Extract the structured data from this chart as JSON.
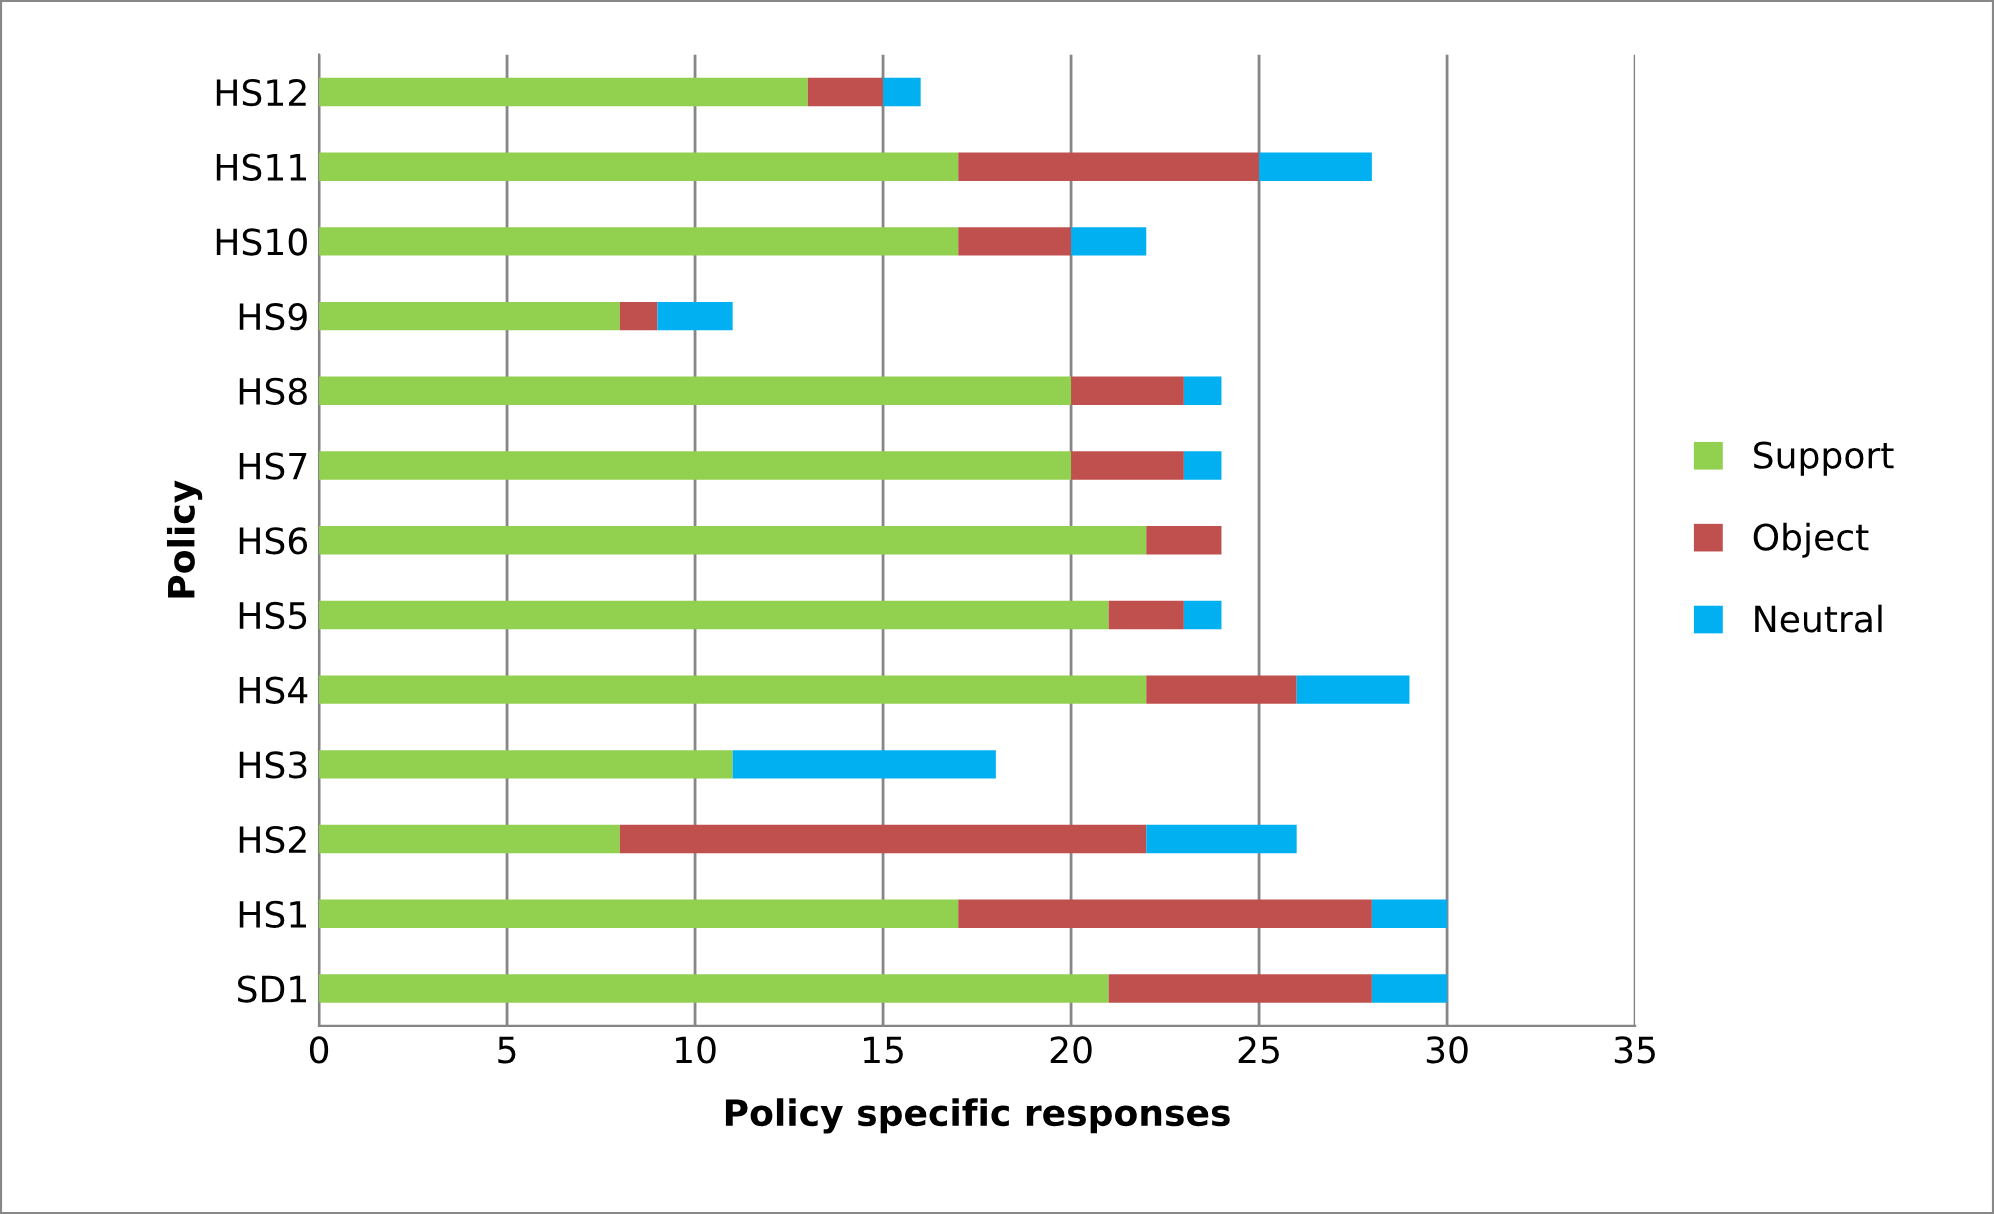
{
  "chart_data": {
    "type": "bar",
    "orientation": "horizontal",
    "stacked": true,
    "xlabel": "Policy specific responses",
    "ylabel": "Policy",
    "categories": [
      "HS12",
      "HS11",
      "HS10",
      "HS9",
      "HS8",
      "HS7",
      "HS6",
      "HS5",
      "HS4",
      "HS3",
      "HS2",
      "HS1",
      "SD1"
    ],
    "series": [
      {
        "name": "Support",
        "color": "#92d050",
        "values": [
          13,
          17,
          17,
          8,
          20,
          20,
          22,
          21,
          22,
          11,
          8,
          17,
          21
        ]
      },
      {
        "name": "Object",
        "color": "#c0504d",
        "values": [
          2,
          8,
          3,
          1,
          3,
          3,
          2,
          2,
          4,
          0,
          14,
          11,
          7
        ]
      },
      {
        "name": "Neutral",
        "color": "#00b0f0",
        "values": [
          1,
          3,
          2,
          2,
          1,
          1,
          0,
          1,
          3,
          7,
          4,
          2,
          2
        ]
      }
    ],
    "xlim": [
      0,
      35
    ],
    "xticks": [
      0,
      5,
      10,
      15,
      20,
      25,
      30,
      35
    ],
    "grid": "x",
    "legend": "right"
  }
}
